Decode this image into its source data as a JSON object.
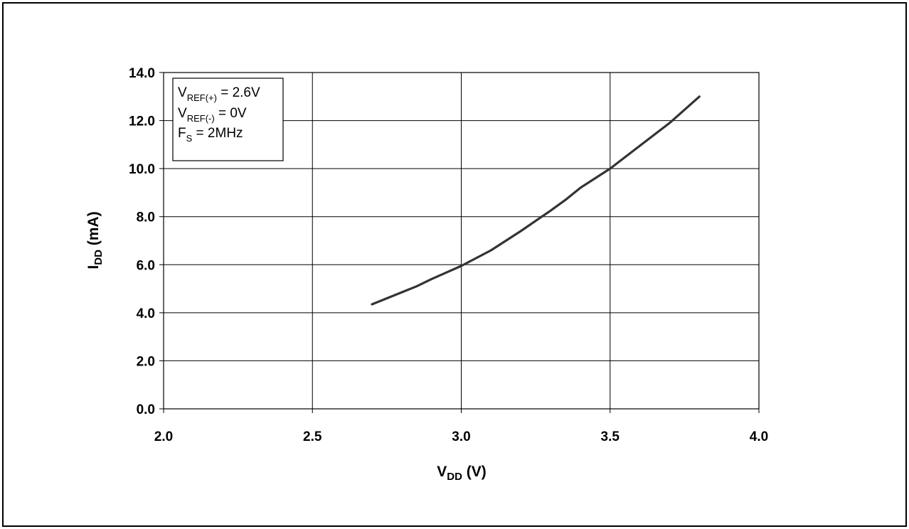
{
  "chart_data": {
    "type": "line",
    "xlabel": {
      "main": "V",
      "sub": "DD",
      "rest": " (V)"
    },
    "ylabel": {
      "main": "I",
      "sub": "DD",
      "rest": " (mA)"
    },
    "xlim": [
      2.0,
      4.0
    ],
    "ylim": [
      0.0,
      14.0
    ],
    "x_ticks": [
      "2.0",
      "2.5",
      "3.0",
      "3.5",
      "4.0"
    ],
    "y_ticks": [
      "0.0",
      "2.0",
      "4.0",
      "6.0",
      "8.0",
      "10.0",
      "12.0",
      "14.0"
    ],
    "grid": true,
    "legend_position": "top-left",
    "annotations": [
      {
        "main": "V",
        "sub": "REF(+)",
        "rest": " = 2.6V"
      },
      {
        "main": "V",
        "sub": "REF(-)",
        "rest": " = 0V"
      },
      {
        "main": "F",
        "sub": "S",
        "rest": " = 2MHz"
      }
    ],
    "series": [
      {
        "color": "#333333",
        "x": [
          2.7,
          2.8,
          2.85,
          2.9,
          3.0,
          3.1,
          3.2,
          3.3,
          3.35,
          3.4,
          3.5,
          3.6,
          3.7,
          3.8
        ],
        "y": [
          4.35,
          4.85,
          5.1,
          5.4,
          5.95,
          6.6,
          7.4,
          8.25,
          8.7,
          9.2,
          10.0,
          10.95,
          11.9,
          13.0
        ]
      }
    ]
  }
}
